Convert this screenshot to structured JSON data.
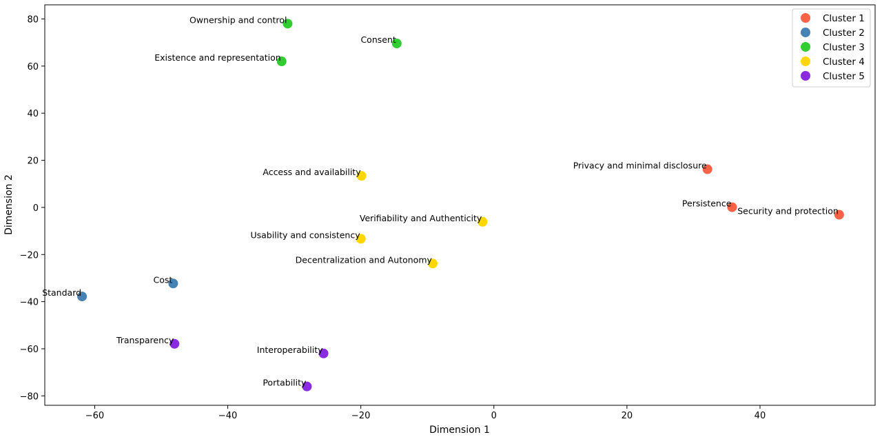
{
  "chart_data": {
    "type": "scatter",
    "title": "",
    "xlabel": "Dimension 1",
    "ylabel": "Dimension 2",
    "xlim": [
      -67.5,
      57.3
    ],
    "ylim": [
      -84,
      86
    ],
    "xticks": [
      -60,
      -40,
      -20,
      0,
      20,
      40
    ],
    "yticks": [
      -80,
      -60,
      -40,
      -20,
      0,
      20,
      40,
      60,
      80
    ],
    "grid": false,
    "legend_position": "top-right",
    "series": [
      {
        "name": "Cluster 1",
        "color": "#ff6347",
        "points": [
          {
            "label": "Privacy and minimal disclosure",
            "x": 32.1,
            "y": 16.2
          },
          {
            "label": "Persistence",
            "x": 35.8,
            "y": 0.1
          },
          {
            "label": "Security and protection",
            "x": 51.9,
            "y": -3.1
          }
        ]
      },
      {
        "name": "Cluster 2",
        "color": "#4682b4",
        "points": [
          {
            "label": "Cost",
            "x": -48.2,
            "y": -32.3
          },
          {
            "label": "Standard",
            "x": -61.9,
            "y": -37.8
          }
        ]
      },
      {
        "name": "Cluster 3",
        "color": "#32cd32",
        "points": [
          {
            "label": "Ownership and control",
            "x": -31.0,
            "y": 78.0
          },
          {
            "label": "Consent",
            "x": -14.6,
            "y": 69.6
          },
          {
            "label": "Existence and representation",
            "x": -31.9,
            "y": 62.0
          }
        ]
      },
      {
        "name": "Cluster 4",
        "color": "#ffd700",
        "points": [
          {
            "label": "Access and availability",
            "x": -19.9,
            "y": 13.4
          },
          {
            "label": "Verifiability and Authenticity",
            "x": -1.7,
            "y": -6.1
          },
          {
            "label": "Usability and consistency",
            "x": -20.0,
            "y": -13.3
          },
          {
            "label": "Decentralization and Autonomy",
            "x": -9.2,
            "y": -23.8
          }
        ]
      },
      {
        "name": "Cluster 5",
        "color": "#8a2be2",
        "points": [
          {
            "label": "Transparency",
            "x": -48.0,
            "y": -57.9
          },
          {
            "label": "Interoperability",
            "x": -25.6,
            "y": -62.0
          },
          {
            "label": "Portability",
            "x": -28.1,
            "y": -76.0
          }
        ]
      }
    ]
  }
}
